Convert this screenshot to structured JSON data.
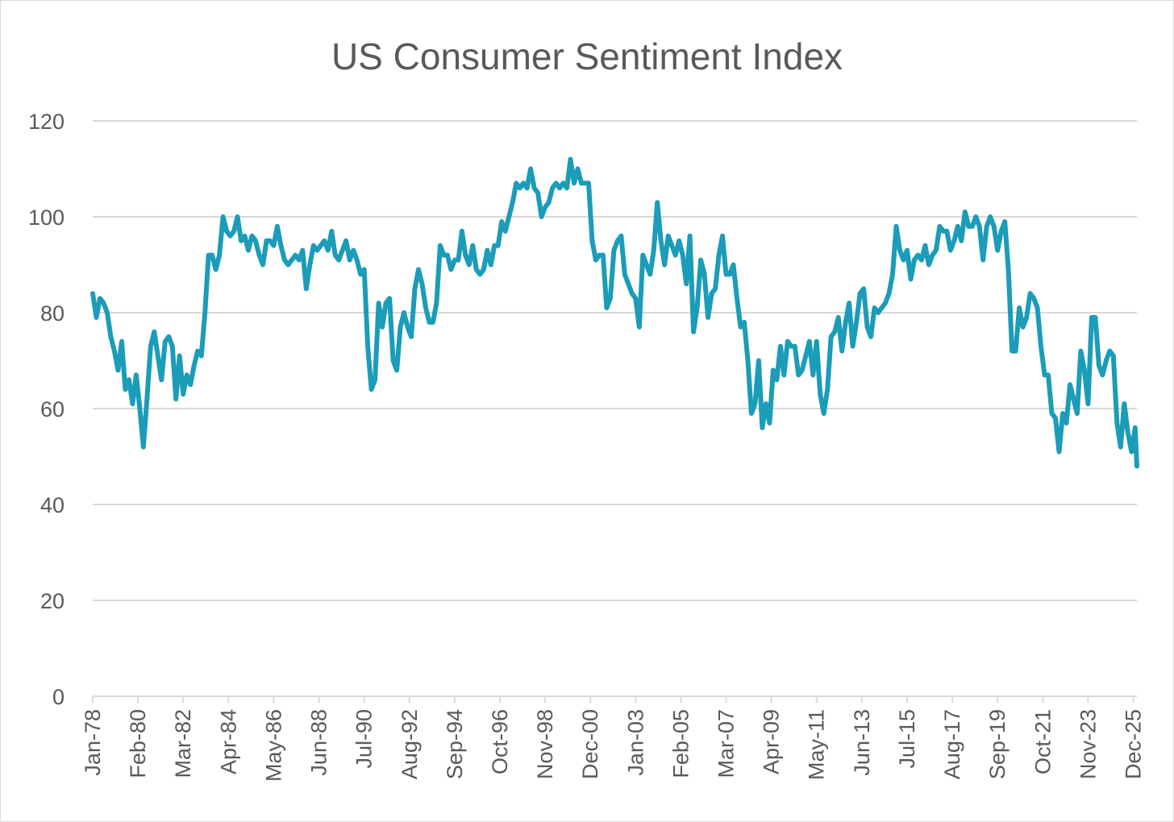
{
  "chart_data": {
    "type": "line",
    "title": "US Consumer Sentiment Index",
    "xlabel": "",
    "ylabel": "",
    "ylim": [
      0,
      120
    ],
    "yticks": [
      0,
      20,
      40,
      60,
      80,
      100,
      120
    ],
    "grid": true,
    "legend": "none",
    "line_color": "#1b9cb8",
    "grid_color": "#d9d9d9",
    "x_tick_labels": [
      "Jan-78",
      "Feb-80",
      "Mar-82",
      "Apr-84",
      "May-86",
      "Jun-88",
      "Jul-90",
      "Aug-92",
      "Sep-94",
      "Oct-96",
      "Nov-98",
      "Dec-00",
      "Jan-03",
      "Feb-05",
      "Mar-07",
      "Apr-09",
      "May-11",
      "Jun-13",
      "Jul-15",
      "Aug-17",
      "Sep-19",
      "Oct-21",
      "Nov-23",
      "Dec-25"
    ],
    "series": [
      {
        "points": [
          [
            "1978-01",
            84
          ],
          [
            "1978-03",
            79
          ],
          [
            "1978-05",
            83
          ],
          [
            "1978-07",
            82
          ],
          [
            "1978-09",
            80
          ],
          [
            "1978-11",
            75
          ],
          [
            "1979-01",
            72
          ],
          [
            "1979-03",
            68
          ],
          [
            "1979-05",
            74
          ],
          [
            "1979-07",
            64
          ],
          [
            "1979-09",
            66
          ],
          [
            "1979-11",
            61
          ],
          [
            "1980-01",
            67
          ],
          [
            "1980-03",
            60
          ],
          [
            "1980-05",
            52
          ],
          [
            "1980-07",
            62
          ],
          [
            "1980-09",
            73
          ],
          [
            "1980-11",
            76
          ],
          [
            "1981-01",
            71
          ],
          [
            "1981-03",
            66
          ],
          [
            "1981-05",
            74
          ],
          [
            "1981-07",
            75
          ],
          [
            "1981-09",
            73
          ],
          [
            "1981-11",
            62
          ],
          [
            "1982-01",
            71
          ],
          [
            "1982-03",
            63
          ],
          [
            "1982-05",
            67
          ],
          [
            "1982-07",
            65
          ],
          [
            "1982-09",
            69
          ],
          [
            "1982-11",
            72
          ],
          [
            "1983-01",
            71
          ],
          [
            "1983-03",
            80
          ],
          [
            "1983-05",
            92
          ],
          [
            "1983-07",
            92
          ],
          [
            "1983-09",
            89
          ],
          [
            "1983-11",
            92
          ],
          [
            "1984-01",
            100
          ],
          [
            "1984-03",
            97
          ],
          [
            "1984-05",
            96
          ],
          [
            "1984-07",
            97
          ],
          [
            "1984-09",
            100
          ],
          [
            "1984-11",
            95
          ],
          [
            "1985-01",
            96
          ],
          [
            "1985-03",
            93
          ],
          [
            "1985-05",
            96
          ],
          [
            "1985-07",
            95
          ],
          [
            "1985-09",
            92
          ],
          [
            "1985-11",
            90
          ],
          [
            "1986-01",
            95
          ],
          [
            "1986-03",
            95
          ],
          [
            "1986-05",
            94
          ],
          [
            "1986-07",
            98
          ],
          [
            "1986-09",
            94
          ],
          [
            "1986-11",
            91
          ],
          [
            "1987-01",
            90
          ],
          [
            "1987-03",
            91
          ],
          [
            "1987-05",
            92
          ],
          [
            "1987-07",
            91
          ],
          [
            "1987-09",
            93
          ],
          [
            "1987-11",
            85
          ],
          [
            "1988-01",
            90
          ],
          [
            "1988-03",
            94
          ],
          [
            "1988-05",
            93
          ],
          [
            "1988-07",
            94
          ],
          [
            "1988-09",
            95
          ],
          [
            "1988-11",
            93
          ],
          [
            "1989-01",
            97
          ],
          [
            "1989-03",
            92
          ],
          [
            "1989-05",
            91
          ],
          [
            "1989-07",
            93
          ],
          [
            "1989-09",
            95
          ],
          [
            "1989-11",
            91
          ],
          [
            "1990-01",
            93
          ],
          [
            "1990-03",
            91
          ],
          [
            "1990-05",
            88
          ],
          [
            "1990-07",
            89
          ],
          [
            "1990-09",
            73
          ],
          [
            "1990-11",
            64
          ],
          [
            "1991-01",
            66
          ],
          [
            "1991-03",
            82
          ],
          [
            "1991-05",
            77
          ],
          [
            "1991-07",
            82
          ],
          [
            "1991-09",
            83
          ],
          [
            "1991-11",
            70
          ],
          [
            "1992-01",
            68
          ],
          [
            "1992-03",
            77
          ],
          [
            "1992-05",
            80
          ],
          [
            "1992-07",
            77
          ],
          [
            "1992-09",
            75
          ],
          [
            "1992-11",
            85
          ],
          [
            "1993-01",
            89
          ],
          [
            "1993-03",
            86
          ],
          [
            "1993-05",
            81
          ],
          [
            "1993-07",
            78
          ],
          [
            "1993-09",
            78
          ],
          [
            "1993-11",
            82
          ],
          [
            "1994-01",
            94
          ],
          [
            "1994-03",
            92
          ],
          [
            "1994-05",
            92
          ],
          [
            "1994-07",
            89
          ],
          [
            "1994-09",
            91
          ],
          [
            "1994-11",
            91
          ],
          [
            "1995-01",
            97
          ],
          [
            "1995-03",
            92
          ],
          [
            "1995-05",
            90
          ],
          [
            "1995-07",
            94
          ],
          [
            "1995-09",
            89
          ],
          [
            "1995-11",
            88
          ],
          [
            "1996-01",
            89
          ],
          [
            "1996-03",
            93
          ],
          [
            "1996-05",
            90
          ],
          [
            "1996-07",
            94
          ],
          [
            "1996-09",
            94
          ],
          [
            "1996-11",
            99
          ],
          [
            "1997-01",
            97
          ],
          [
            "1997-03",
            100
          ],
          [
            "1997-05",
            103
          ],
          [
            "1997-07",
            107
          ],
          [
            "1997-09",
            106
          ],
          [
            "1997-11",
            107
          ],
          [
            "1998-01",
            106
          ],
          [
            "1998-03",
            110
          ],
          [
            "1998-05",
            106
          ],
          [
            "1998-07",
            105
          ],
          [
            "1998-09",
            100
          ],
          [
            "1998-11",
            102
          ],
          [
            "1999-01",
            103
          ],
          [
            "1999-03",
            106
          ],
          [
            "1999-05",
            107
          ],
          [
            "1999-07",
            106
          ],
          [
            "1999-09",
            107
          ],
          [
            "1999-11",
            106
          ],
          [
            "2000-01",
            112
          ],
          [
            "2000-03",
            107
          ],
          [
            "2000-05",
            110
          ],
          [
            "2000-07",
            107
          ],
          [
            "2000-09",
            107
          ],
          [
            "2000-11",
            107
          ],
          [
            "2001-01",
            95
          ],
          [
            "2001-03",
            91
          ],
          [
            "2001-05",
            92
          ],
          [
            "2001-07",
            92
          ],
          [
            "2001-09",
            81
          ],
          [
            "2001-11",
            83
          ],
          [
            "2002-01",
            93
          ],
          [
            "2002-03",
            95
          ],
          [
            "2002-05",
            96
          ],
          [
            "2002-07",
            88
          ],
          [
            "2002-09",
            86
          ],
          [
            "2002-11",
            84
          ],
          [
            "2003-01",
            83
          ],
          [
            "2003-03",
            77
          ],
          [
            "2003-05",
            92
          ],
          [
            "2003-07",
            90
          ],
          [
            "2003-09",
            88
          ],
          [
            "2003-11",
            93
          ],
          [
            "2004-01",
            103
          ],
          [
            "2004-03",
            95
          ],
          [
            "2004-05",
            90
          ],
          [
            "2004-07",
            96
          ],
          [
            "2004-09",
            94
          ],
          [
            "2004-11",
            92
          ],
          [
            "2005-01",
            95
          ],
          [
            "2005-03",
            92
          ],
          [
            "2005-05",
            86
          ],
          [
            "2005-07",
            96
          ],
          [
            "2005-09",
            76
          ],
          [
            "2005-11",
            81
          ],
          [
            "2006-01",
            91
          ],
          [
            "2006-03",
            88
          ],
          [
            "2006-05",
            79
          ],
          [
            "2006-07",
            84
          ],
          [
            "2006-09",
            85
          ],
          [
            "2006-11",
            92
          ],
          [
            "2007-01",
            96
          ],
          [
            "2007-03",
            88
          ],
          [
            "2007-05",
            88
          ],
          [
            "2007-07",
            90
          ],
          [
            "2007-09",
            83
          ],
          [
            "2007-11",
            77
          ],
          [
            "2008-01",
            78
          ],
          [
            "2008-03",
            70
          ],
          [
            "2008-05",
            59
          ],
          [
            "2008-07",
            61
          ],
          [
            "2008-09",
            70
          ],
          [
            "2008-11",
            56
          ],
          [
            "2009-01",
            61
          ],
          [
            "2009-03",
            57
          ],
          [
            "2009-05",
            68
          ],
          [
            "2009-07",
            66
          ],
          [
            "2009-09",
            73
          ],
          [
            "2009-11",
            67
          ],
          [
            "2010-01",
            74
          ],
          [
            "2010-03",
            73
          ],
          [
            "2010-05",
            73
          ],
          [
            "2010-07",
            67
          ],
          [
            "2010-09",
            68
          ],
          [
            "2010-11",
            71
          ],
          [
            "2011-01",
            74
          ],
          [
            "2011-03",
            67
          ],
          [
            "2011-05",
            74
          ],
          [
            "2011-07",
            63
          ],
          [
            "2011-09",
            59
          ],
          [
            "2011-11",
            64
          ],
          [
            "2012-01",
            75
          ],
          [
            "2012-03",
            76
          ],
          [
            "2012-05",
            79
          ],
          [
            "2012-07",
            72
          ],
          [
            "2012-09",
            78
          ],
          [
            "2012-11",
            82
          ],
          [
            "2013-01",
            73
          ],
          [
            "2013-03",
            78
          ],
          [
            "2013-05",
            84
          ],
          [
            "2013-07",
            85
          ],
          [
            "2013-09",
            77
          ],
          [
            "2013-11",
            75
          ],
          [
            "2014-01",
            81
          ],
          [
            "2014-03",
            80
          ],
          [
            "2014-05",
            81
          ],
          [
            "2014-07",
            82
          ],
          [
            "2014-09",
            84
          ],
          [
            "2014-11",
            88
          ],
          [
            "2015-01",
            98
          ],
          [
            "2015-03",
            93
          ],
          [
            "2015-05",
            91
          ],
          [
            "2015-07",
            93
          ],
          [
            "2015-09",
            87
          ],
          [
            "2015-11",
            91
          ],
          [
            "2016-01",
            92
          ],
          [
            "2016-03",
            91
          ],
          [
            "2016-05",
            94
          ],
          [
            "2016-07",
            90
          ],
          [
            "2016-09",
            92
          ],
          [
            "2016-11",
            93
          ],
          [
            "2017-01",
            98
          ],
          [
            "2017-03",
            97
          ],
          [
            "2017-05",
            97
          ],
          [
            "2017-07",
            93
          ],
          [
            "2017-09",
            95
          ],
          [
            "2017-11",
            98
          ],
          [
            "2018-01",
            95
          ],
          [
            "2018-03",
            101
          ],
          [
            "2018-05",
            98
          ],
          [
            "2018-07",
            98
          ],
          [
            "2018-09",
            100
          ],
          [
            "2018-11",
            98
          ],
          [
            "2019-01",
            91
          ],
          [
            "2019-03",
            98
          ],
          [
            "2019-05",
            100
          ],
          [
            "2019-07",
            98
          ],
          [
            "2019-09",
            93
          ],
          [
            "2019-11",
            97
          ],
          [
            "2020-01",
            99
          ],
          [
            "2020-03",
            89
          ],
          [
            "2020-05",
            72
          ],
          [
            "2020-07",
            72
          ],
          [
            "2020-09",
            81
          ],
          [
            "2020-11",
            77
          ],
          [
            "2021-01",
            79
          ],
          [
            "2021-03",
            84
          ],
          [
            "2021-05",
            83
          ],
          [
            "2021-07",
            81
          ],
          [
            "2021-09",
            73
          ],
          [
            "2021-11",
            67
          ],
          [
            "2022-01",
            67
          ],
          [
            "2022-03",
            59
          ],
          [
            "2022-05",
            58
          ],
          [
            "2022-07",
            51
          ],
          [
            "2022-09",
            59
          ],
          [
            "2022-11",
            57
          ],
          [
            "2023-01",
            65
          ],
          [
            "2023-03",
            62
          ],
          [
            "2023-05",
            59
          ],
          [
            "2023-07",
            72
          ],
          [
            "2023-09",
            68
          ],
          [
            "2023-11",
            61
          ],
          [
            "2024-01",
            79
          ],
          [
            "2024-03",
            79
          ],
          [
            "2024-05",
            69
          ],
          [
            "2024-07",
            67
          ],
          [
            "2024-09",
            70
          ],
          [
            "2024-11",
            72
          ],
          [
            "2025-01",
            71
          ],
          [
            "2025-03",
            57
          ],
          [
            "2025-05",
            52
          ],
          [
            "2025-07",
            61
          ],
          [
            "2025-09",
            55
          ],
          [
            "2025-11",
            51
          ],
          [
            "2026-01",
            56
          ],
          [
            "2026-02",
            48
          ]
        ]
      }
    ]
  }
}
